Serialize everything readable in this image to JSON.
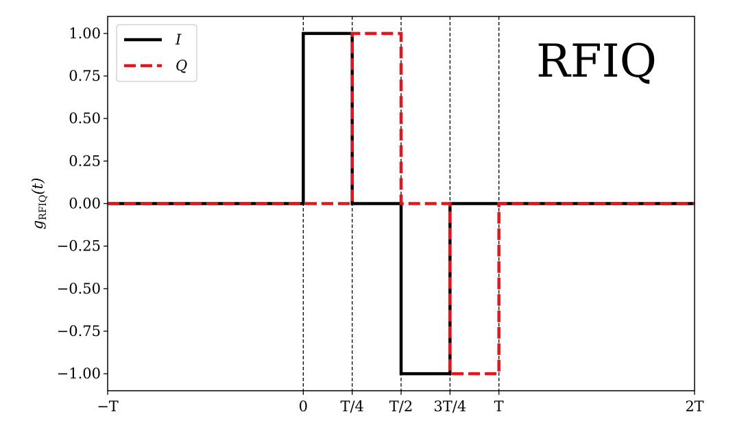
{
  "chart_data": {
    "type": "line",
    "title": "",
    "xlabel": "",
    "ylabel": "gRFIQ(t)",
    "xlim": [
      -1,
      2
    ],
    "ylim": [
      -1.1,
      1.1
    ],
    "x_tick_values": [
      -1,
      0,
      0.25,
      0.5,
      0.75,
      1,
      2
    ],
    "x_tick_labels": [
      "−T",
      "0",
      "T/4",
      "T/2",
      "3T/4",
      "T",
      "2T"
    ],
    "y_ticks": [
      1.0,
      0.75,
      0.5,
      0.25,
      0.0,
      -0.25,
      -0.5,
      -0.75,
      -1.0
    ],
    "y_tick_labels": [
      "1.00",
      "0.75",
      "0.50",
      "0.25",
      "0.00",
      "−0.25",
      "−0.50",
      "−0.75",
      "−1.00"
    ],
    "vlines": [
      0,
      0.25,
      0.5,
      0.75,
      1
    ],
    "series": [
      {
        "name": "I",
        "color": "#000000",
        "style": "solid",
        "x": [
          -1,
          0,
          0,
          0.25,
          0.25,
          0.5,
          0.5,
          0.75,
          0.75,
          1,
          1,
          2
        ],
        "y": [
          0,
          0,
          1,
          1,
          0,
          0,
          -1,
          -1,
          0,
          0,
          0,
          0
        ]
      },
      {
        "name": "Q",
        "color": "#e8141c",
        "style": "dashed",
        "x": [
          -1,
          0.25,
          0.25,
          0.5,
          0.5,
          0.75,
          0.75,
          1,
          1,
          2
        ],
        "y": [
          0,
          0,
          1,
          1,
          0,
          0,
          -1,
          -1,
          0,
          0
        ]
      }
    ],
    "legend": {
      "position": "top-left",
      "entries": [
        "I",
        "Q"
      ]
    },
    "annotation": "RFIQ"
  }
}
